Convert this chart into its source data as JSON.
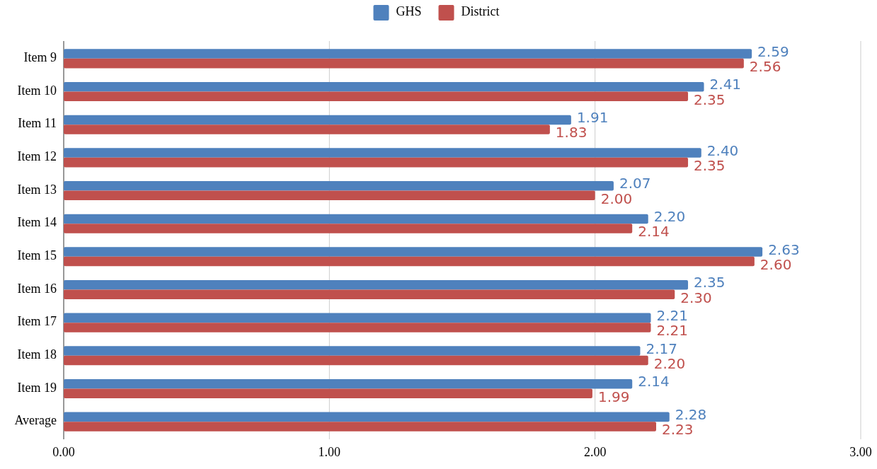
{
  "chart_data": {
    "type": "bar",
    "orientation": "horizontal",
    "categories": [
      "Item 9",
      "Item 10",
      "Item 11",
      "Item 12",
      "Item 13",
      "Item 14",
      "Item 15",
      "Item 16",
      "Item 17",
      "Item 18",
      "Item 19",
      "Average"
    ],
    "series": [
      {
        "name": "GHS",
        "color": "#4f81bd",
        "values": [
          2.59,
          2.41,
          1.91,
          2.4,
          2.07,
          2.2,
          2.63,
          2.35,
          2.21,
          2.17,
          2.14,
          2.28
        ],
        "value_labels": [
          "2.59",
          "2.41",
          "1.91",
          "2.40",
          "2.07",
          "2.20",
          "2.63",
          "2.35",
          "2.21",
          "2.17",
          "2.14",
          "2.28"
        ]
      },
      {
        "name": "District",
        "color": "#c0504d",
        "values": [
          2.56,
          2.35,
          1.83,
          2.35,
          2.0,
          2.14,
          2.6,
          2.3,
          2.21,
          2.2,
          1.99,
          2.23
        ],
        "value_labels": [
          "2.56",
          "2.35",
          "1.83",
          "2.35",
          "2.00",
          "2.14",
          "2.60",
          "2.30",
          "2.21",
          "2.20",
          "1.99",
          "2.23"
        ]
      }
    ],
    "xlim": [
      0,
      3
    ],
    "xticks": [
      {
        "value": 0,
        "label": "0.00"
      },
      {
        "value": 1,
        "label": "1.00"
      },
      {
        "value": 2,
        "label": "2.00"
      },
      {
        "value": 3,
        "label": "3.00"
      }
    ],
    "grid": "x",
    "legend": "top"
  }
}
